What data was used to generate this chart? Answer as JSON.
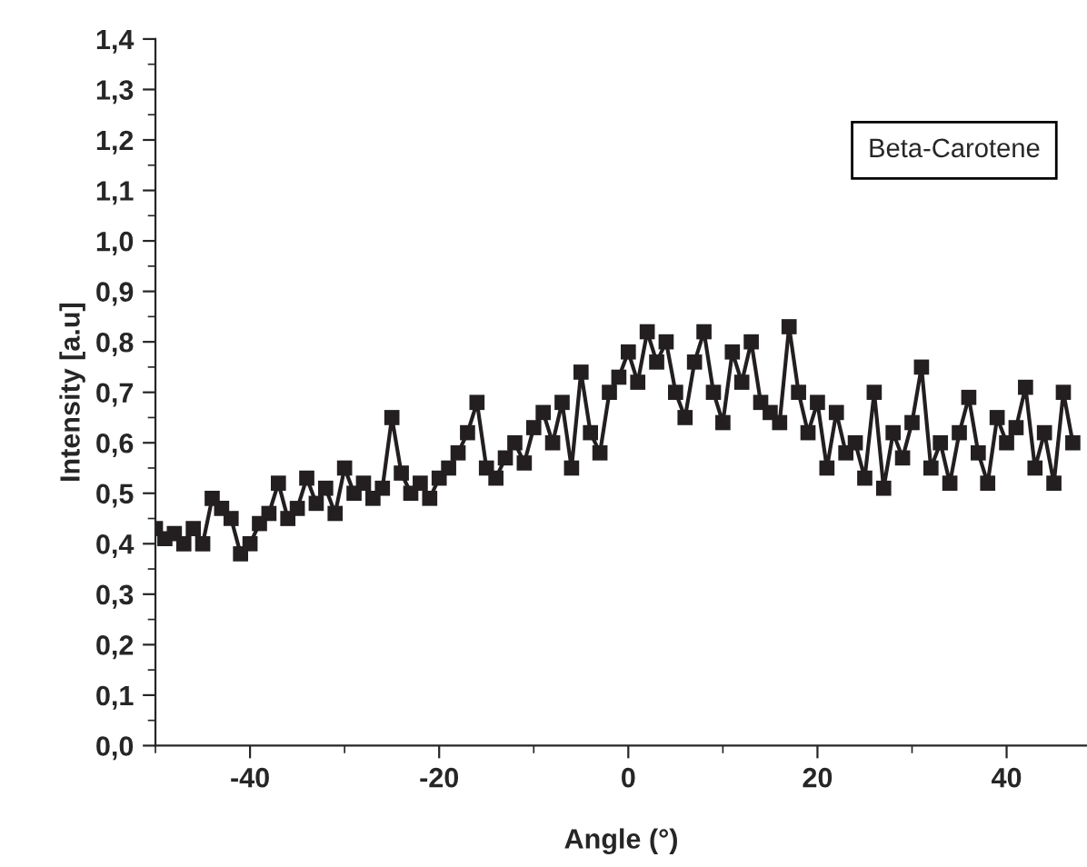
{
  "chart_data": {
    "type": "line",
    "xlabel": "Angle (°)",
    "ylabel": "Intensity [a.u]",
    "annotations": [
      "Beta-Carotene"
    ],
    "x": [
      -50,
      -49,
      -48,
      -47,
      -46,
      -45,
      -44,
      -43,
      -42,
      -41,
      -40,
      -39,
      -38,
      -37,
      -36,
      -35,
      -34,
      -33,
      -32,
      -31,
      -30,
      -29,
      -28,
      -27,
      -26,
      -25,
      -24,
      -23,
      -22,
      -21,
      -20,
      -19,
      -18,
      -17,
      -16,
      -15,
      -14,
      -13,
      -12,
      -11,
      -10,
      -9,
      -8,
      -7,
      -6,
      -5,
      -4,
      -3,
      -2,
      -1,
      0,
      1,
      2,
      3,
      4,
      5,
      6,
      7,
      8,
      9,
      10,
      11,
      12,
      13,
      14,
      15,
      16,
      17,
      18,
      19,
      20,
      21,
      22,
      23,
      24,
      25,
      26,
      27,
      28,
      29,
      30,
      31,
      32,
      33,
      34,
      35,
      36,
      37,
      38,
      39,
      40,
      41,
      42,
      43,
      44,
      45,
      46,
      47
    ],
    "series": [
      {
        "color": "#231f20",
        "values": [
          0.43,
          0.41,
          0.42,
          0.4,
          0.43,
          0.4,
          0.49,
          0.47,
          0.45,
          0.38,
          0.4,
          0.44,
          0.46,
          0.52,
          0.45,
          0.47,
          0.53,
          0.48,
          0.51,
          0.46,
          0.55,
          0.5,
          0.52,
          0.49,
          0.51,
          0.65,
          0.54,
          0.5,
          0.52,
          0.49,
          0.53,
          0.55,
          0.58,
          0.62,
          0.68,
          0.55,
          0.53,
          0.57,
          0.6,
          0.56,
          0.63,
          0.66,
          0.6,
          0.68,
          0.55,
          0.74,
          0.62,
          0.58,
          0.7,
          0.73,
          0.78,
          0.72,
          0.82,
          0.76,
          0.8,
          0.7,
          0.65,
          0.76,
          0.82,
          0.7,
          0.64,
          0.78,
          0.72,
          0.8,
          0.68,
          0.66,
          0.64,
          0.83,
          0.7,
          0.62,
          0.68,
          0.55,
          0.66,
          0.58,
          0.6,
          0.53,
          0.7,
          0.51,
          0.62,
          0.57,
          0.64,
          0.75,
          0.55,
          0.6,
          0.52,
          0.62,
          0.69,
          0.58,
          0.52,
          0.65,
          0.6,
          0.63,
          0.71,
          0.55,
          0.62,
          0.52,
          0.7,
          0.6
        ]
      }
    ],
    "marker": "square",
    "line_style": "solid",
    "xlim": [
      -50,
      48.5
    ],
    "xticks": [
      -40,
      -20,
      0,
      20,
      40
    ],
    "ylim": [
      0,
      1.4
    ],
    "yticks": [
      {
        "value": 0,
        "label": "0,0"
      },
      {
        "value": 0.1,
        "label": "0,1"
      },
      {
        "value": 0.2,
        "label": "0,2"
      },
      {
        "value": 0.3,
        "label": "0,3"
      },
      {
        "value": 0.4,
        "label": "0,4"
      },
      {
        "value": 0.5,
        "label": "0,5"
      },
      {
        "value": 0.6,
        "label": "0,6"
      },
      {
        "value": 0.7,
        "label": "0,7"
      },
      {
        "value": 0.8,
        "label": "0,8"
      },
      {
        "value": 0.9,
        "label": "0,9"
      },
      {
        "value": 1.0,
        "label": "1,0"
      },
      {
        "value": 1.1,
        "label": "1,1"
      },
      {
        "value": 1.2,
        "label": "1,2"
      },
      {
        "value": 1.3,
        "label": "1,3"
      },
      {
        "value": 1.4,
        "label": "1,4"
      }
    ],
    "grid": false
  }
}
